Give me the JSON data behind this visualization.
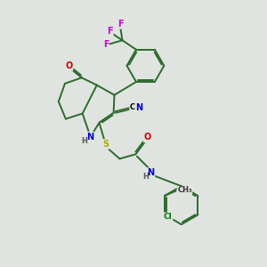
{
  "bg_color": "#e0e4e0",
  "bond_color": "#2d6b2d",
  "bond_width": 1.4,
  "atom_colors": {
    "N": "#0000cc",
    "O": "#cc0000",
    "S": "#aaaa00",
    "F": "#cc00cc",
    "Cl": "#007700",
    "H": "#555555"
  },
  "font_size": 7
}
